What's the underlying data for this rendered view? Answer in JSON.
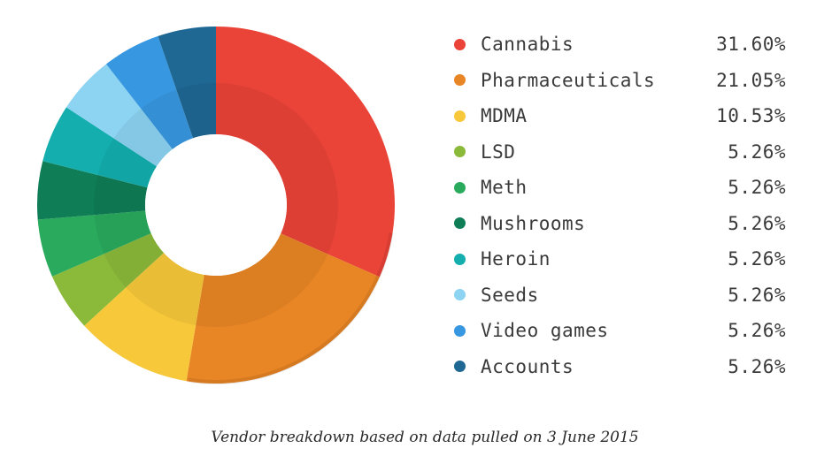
{
  "chart_data": {
    "type": "pie",
    "variant": "donut",
    "slices": [
      {
        "label": "Cannabis",
        "value": 31.6,
        "display": "31.60%",
        "color": "#ea4338"
      },
      {
        "label": "Pharmaceuticals",
        "value": 21.05,
        "display": "21.05%",
        "color": "#e88524"
      },
      {
        "label": "MDMA",
        "value": 10.53,
        "display": "10.53%",
        "color": "#f7c83a"
      },
      {
        "label": "LSD",
        "value": 5.26,
        "display": "5.26%",
        "color": "#8bb93a"
      },
      {
        "label": "Meth",
        "value": 5.26,
        "display": "5.26%",
        "color": "#2aaa5c"
      },
      {
        "label": "Mushrooms",
        "value": 5.26,
        "display": "5.26%",
        "color": "#0f7e57"
      },
      {
        "label": "Heroin",
        "value": 5.26,
        "display": "5.26%",
        "color": "#14aeae"
      },
      {
        "label": "Seeds",
        "value": 5.26,
        "display": "5.26%",
        "color": "#8dd3f2"
      },
      {
        "label": "Video games",
        "value": 5.26,
        "display": "5.26%",
        "color": "#3797e0"
      },
      {
        "label": "Accounts",
        "value": 5.26,
        "display": "5.26%",
        "color": "#1f6894"
      }
    ],
    "legend_position": "right"
  },
  "caption": "Vendor breakdown based on data pulled on 3 June 2015"
}
